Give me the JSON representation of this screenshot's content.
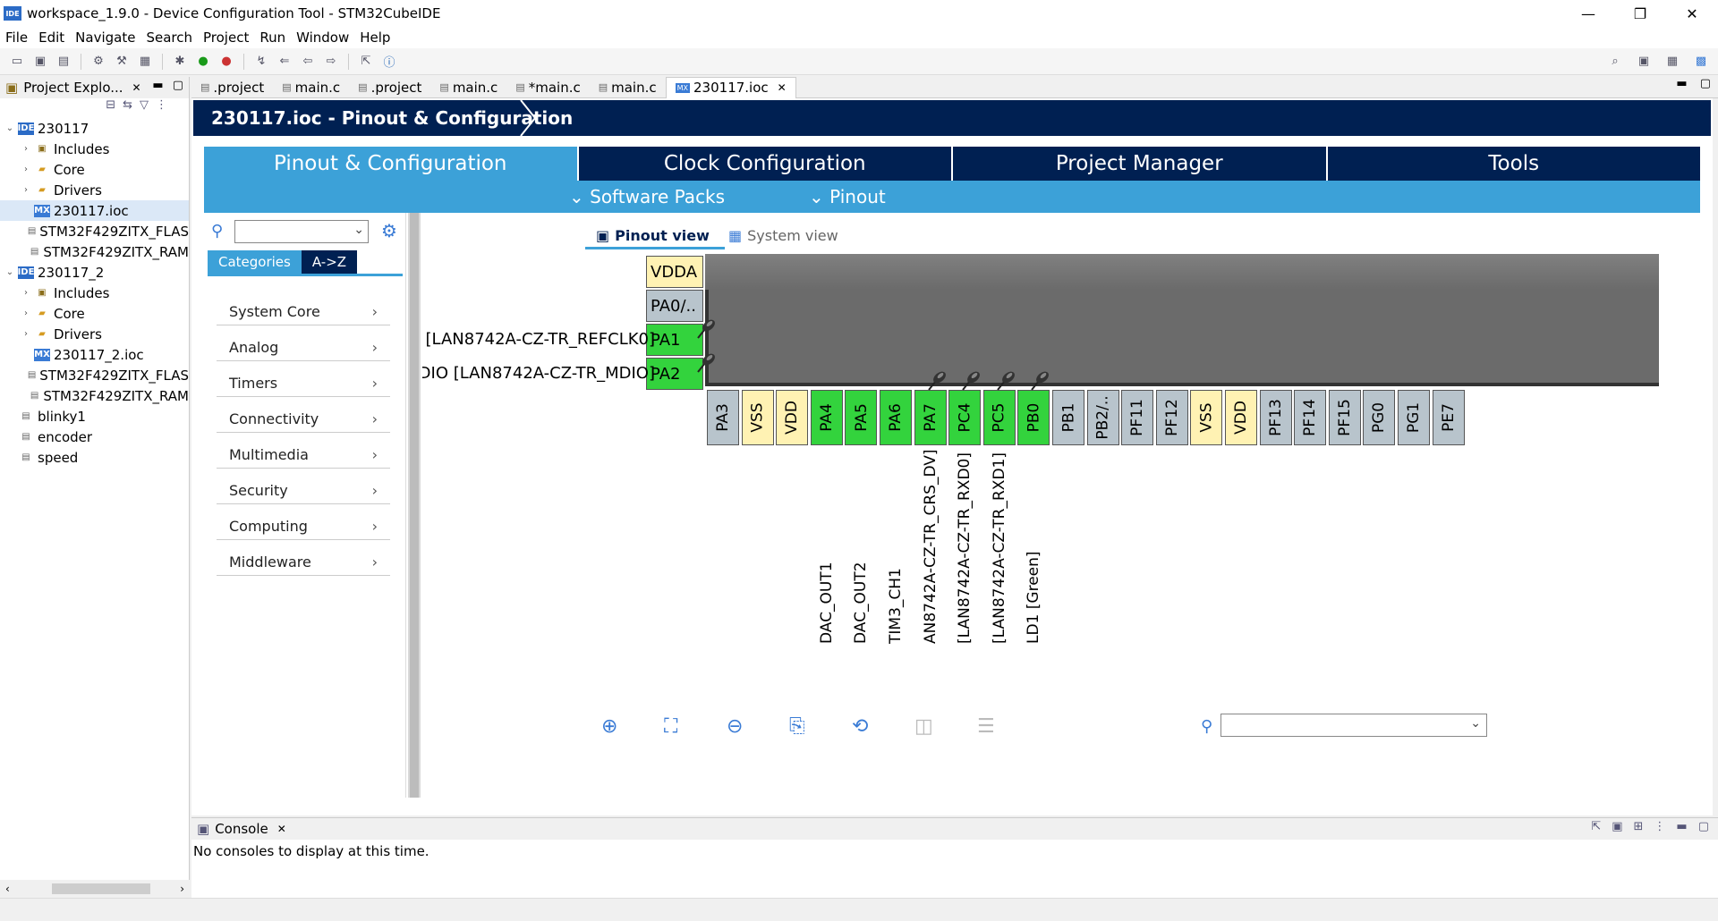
{
  "window": {
    "title": "workspace_1.9.0 - Device Configuration Tool - STM32CubeIDE",
    "app_icon": "IDE",
    "controls": [
      "—",
      "❐",
      "✕"
    ]
  },
  "menu": [
    "File",
    "Edit",
    "Navigate",
    "Search",
    "Project",
    "Run",
    "Window",
    "Help"
  ],
  "explorer": {
    "tab_label": "Project Explo...",
    "tree": [
      {
        "label": "230117",
        "level": 0,
        "icon": "project",
        "arrow": "open"
      },
      {
        "label": "Includes",
        "level": 1,
        "icon": "includes",
        "arrow": "closed"
      },
      {
        "label": "Core",
        "level": 1,
        "icon": "folder",
        "arrow": "closed"
      },
      {
        "label": "Drivers",
        "level": 1,
        "icon": "folder",
        "arrow": "closed"
      },
      {
        "label": "230117.ioc",
        "level": 1,
        "icon": "mx",
        "arrow": "none",
        "selected": true
      },
      {
        "label": "STM32F429ZITX_FLAS",
        "level": 1,
        "icon": "file",
        "arrow": "none"
      },
      {
        "label": "STM32F429ZITX_RAM",
        "level": 1,
        "icon": "file",
        "arrow": "none"
      },
      {
        "label": "230117_2",
        "level": 0,
        "icon": "project",
        "arrow": "open"
      },
      {
        "label": "Includes",
        "level": 1,
        "icon": "includes",
        "arrow": "closed"
      },
      {
        "label": "Core",
        "level": 1,
        "icon": "folder",
        "arrow": "closed"
      },
      {
        "label": "Drivers",
        "level": 1,
        "icon": "folder",
        "arrow": "closed"
      },
      {
        "label": "230117_2.ioc",
        "level": 1,
        "icon": "mx",
        "arrow": "none"
      },
      {
        "label": "STM32F429ZITX_FLAS",
        "level": 1,
        "icon": "file",
        "arrow": "none"
      },
      {
        "label": "STM32F429ZITX_RAM",
        "level": 1,
        "icon": "file",
        "arrow": "none"
      },
      {
        "label": "blinky1",
        "level": 0,
        "icon": "closed-project",
        "arrow": "none"
      },
      {
        "label": "encoder",
        "level": 0,
        "icon": "closed-project",
        "arrow": "none"
      },
      {
        "label": "speed",
        "level": 0,
        "icon": "closed-project",
        "arrow": "none"
      }
    ]
  },
  "editor_tabs": [
    {
      "label": ".project",
      "active": false
    },
    {
      "label": "main.c",
      "active": false
    },
    {
      "label": ".project",
      "active": false
    },
    {
      "label": "main.c",
      "active": false
    },
    {
      "label": "*main.c",
      "active": false
    },
    {
      "label": "main.c",
      "active": false
    },
    {
      "label": "230117.ioc",
      "active": true
    }
  ],
  "mx": {
    "header": "230117.ioc - Pinout & Configuration",
    "main_tabs": [
      {
        "label": "Pinout & Configuration",
        "active": true
      },
      {
        "label": "Clock Configuration",
        "active": false
      },
      {
        "label": "Project Manager",
        "active": false
      },
      {
        "label": "Tools",
        "active": false
      }
    ],
    "sub_menus": [
      "Software Packs",
      "Pinout"
    ],
    "category_toggle": [
      "Categories",
      "A->Z"
    ],
    "categories": [
      "System Core",
      "Analog",
      "Timers",
      "Connectivity",
      "Multimedia",
      "Security",
      "Computing",
      "Middleware"
    ],
    "view_tabs": [
      "Pinout view",
      "System view"
    ],
    "left_pins": [
      {
        "name": "VDDA",
        "kind": "yellow",
        "label": ""
      },
      {
        "name": "PA0/..",
        "kind": "grey",
        "label": ""
      },
      {
        "name": "PA1",
        "kind": "green",
        "label": "[LAN8742A-CZ-TR_REFCLK0]",
        "pinned": true
      },
      {
        "name": "PA2",
        "kind": "green",
        "label": "DIO [LAN8742A-CZ-TR_MDIO]",
        "pinned": true
      }
    ],
    "bottom_pins": [
      {
        "name": "PA3",
        "kind": "grey",
        "label": ""
      },
      {
        "name": "VSS",
        "kind": "yellow",
        "label": ""
      },
      {
        "name": "VDD",
        "kind": "yellow",
        "label": ""
      },
      {
        "name": "PA4",
        "kind": "green",
        "label": "DAC_OUT1"
      },
      {
        "name": "PA5",
        "kind": "green",
        "label": "DAC_OUT2"
      },
      {
        "name": "PA6",
        "kind": "green",
        "label": "TIM3_CH1"
      },
      {
        "name": "PA7",
        "kind": "green",
        "label": "AN8742A-CZ-TR_CRS_DV]",
        "pinned": true
      },
      {
        "name": "PC4",
        "kind": "green",
        "label": "[LAN8742A-CZ-TR_RXD0]",
        "pinned": true
      },
      {
        "name": "PC5",
        "kind": "green",
        "label": "[LAN8742A-CZ-TR_RXD1]",
        "pinned": true
      },
      {
        "name": "PB0",
        "kind": "green",
        "label": "LD1 [Green]",
        "pinned": true
      },
      {
        "name": "PB1",
        "kind": "grey",
        "label": ""
      },
      {
        "name": "PB2/..",
        "kind": "grey",
        "label": ""
      },
      {
        "name": "PF11",
        "kind": "grey",
        "label": ""
      },
      {
        "name": "PF12",
        "kind": "grey",
        "label": ""
      },
      {
        "name": "VSS",
        "kind": "yellow",
        "label": ""
      },
      {
        "name": "VDD",
        "kind": "yellow",
        "label": ""
      },
      {
        "name": "PF13",
        "kind": "grey",
        "label": ""
      },
      {
        "name": "PF14",
        "kind": "grey",
        "label": ""
      },
      {
        "name": "PF15",
        "kind": "grey",
        "label": ""
      },
      {
        "name": "PG0",
        "kind": "grey",
        "label": ""
      },
      {
        "name": "PG1",
        "kind": "grey",
        "label": ""
      },
      {
        "name": "PE7",
        "kind": "grey",
        "label": ""
      }
    ]
  },
  "console": {
    "tab_label": "Console",
    "message": "No consoles to display at this time."
  },
  "colors": {
    "st_dark_blue": "#002052",
    "st_light_blue": "#3ca1d8",
    "pin_green": "#33d33d",
    "pin_yellow": "#fff2b3",
    "pin_grey": "#b8c4cc"
  }
}
